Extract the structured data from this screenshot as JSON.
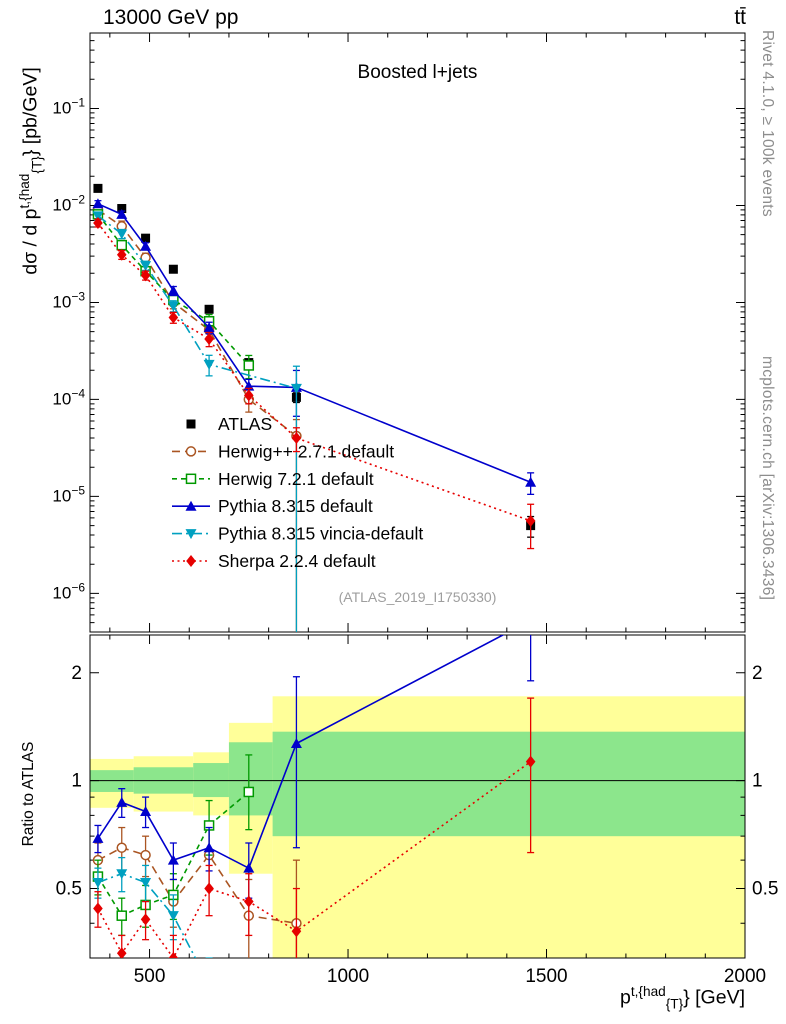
{
  "header": {
    "left": "13000 GeV pp",
    "right": "tt̄"
  },
  "side": {
    "top": "Rivet 4.1.0, ≥ 100k events",
    "bottom": "mcplots.cern.ch [arXiv:1306.3436]"
  },
  "watermark": "(ATLAS_2019_I1750330)",
  "chart_data": {
    "type": "line",
    "title": "Boosted l+jets",
    "ratio_ylabel": "Ratio to ATLAS",
    "ylabel_tokens": [
      {
        "t": "dσ / d p",
        "m": "n"
      },
      {
        "t": "t,{had",
        "m": "sup"
      },
      {
        "t": "{T}",
        "m": "sub"
      },
      {
        "t": "} [pb/GeV]",
        "m": "n"
      }
    ],
    "xlabel_tokens": [
      {
        "t": "p",
        "m": "n"
      },
      {
        "t": "t,{had",
        "m": "sup"
      },
      {
        "t": "{T}",
        "m": "sub"
      },
      {
        "t": "} [GeV]",
        "m": "n"
      }
    ],
    "x_range": [
      350,
      2000
    ],
    "top_y_range": [
      4e-07,
      0.6
    ],
    "top_y_log": true,
    "ratio_y_range": [
      0.32,
      2.55
    ],
    "ratio_y_log": true,
    "x_ticks": [
      500,
      1000,
      1500,
      2000
    ],
    "x_minor_step": 100,
    "top_y_tick_exponents": [
      -6,
      -5,
      -4,
      -3,
      -2,
      -1
    ],
    "ratio_y_ticks": [
      0.5,
      1,
      2
    ],
    "ratio_reference": 1,
    "bands": {
      "yellow": {
        "color": "#ffff99",
        "bins": [
          {
            "x1": 350,
            "x2": 460,
            "lo": 0.84,
            "hi": 1.15
          },
          {
            "x1": 460,
            "x2": 610,
            "lo": 0.82,
            "hi": 1.17
          },
          {
            "x1": 610,
            "x2": 700,
            "lo": 0.8,
            "hi": 1.2
          },
          {
            "x1": 700,
            "x2": 810,
            "lo": 0.55,
            "hi": 1.45
          },
          {
            "x1": 810,
            "x2": 2000,
            "lo": 0.3,
            "hi": 1.72
          }
        ]
      },
      "green": {
        "color": "#8ce68c",
        "bins": [
          {
            "x1": 350,
            "x2": 460,
            "lo": 0.93,
            "hi": 1.07
          },
          {
            "x1": 460,
            "x2": 610,
            "lo": 0.92,
            "hi": 1.09
          },
          {
            "x1": 610,
            "x2": 700,
            "lo": 0.9,
            "hi": 1.12
          },
          {
            "x1": 700,
            "x2": 810,
            "lo": 0.8,
            "hi": 1.28
          },
          {
            "x1": 810,
            "x2": 2000,
            "lo": 0.7,
            "hi": 1.37
          }
        ]
      }
    },
    "series": [
      {
        "name": "atlas",
        "legend": "ATLAS",
        "color": "#000000",
        "marker": "square-filled",
        "dash": "none",
        "x": [
          370,
          430,
          490,
          560,
          650,
          750,
          870,
          1460
        ],
        "y": [
          0.015,
          0.0093,
          0.0046,
          0.0022,
          0.00085,
          0.00024,
          0.000105,
          5e-06
        ],
        "yerr_lo": [
          0.0011,
          0.00065,
          0.00033,
          0.00016,
          6.5e-05,
          2e-05,
          1.2e-05,
          1.2e-06
        ],
        "yerr_hi": [
          0.0011,
          0.00065,
          0.00033,
          0.00016,
          6.5e-05,
          2e-05,
          1.2e-05,
          1.2e-06
        ],
        "ratio": null
      },
      {
        "name": "herwigpp",
        "legend": "Herwig++ 2.7.1 default",
        "color": "#aa5522",
        "marker": "circle-open",
        "dash": "8,5",
        "x": [
          370,
          430,
          490,
          560,
          650,
          750,
          870
        ],
        "y": [
          0.009,
          0.0061,
          0.0029,
          0.001,
          0.00052,
          0.0001,
          4.2e-05
        ],
        "yerr_lo": [
          0.001,
          0.0008,
          0.00032,
          0.00014,
          9e-05,
          2.6e-05,
          null
        ],
        "yerr_hi": [
          0.001,
          0.0008,
          0.00032,
          0.00014,
          9e-05,
          2.6e-05,
          2e-05
        ],
        "ratio": [
          0.6,
          0.65,
          0.62,
          0.46,
          0.62,
          0.42,
          0.4
        ],
        "ratio_err_lo": [
          0.07,
          0.09,
          0.08,
          0.07,
          0.12,
          0.11,
          null
        ],
        "ratio_err_hi": [
          0.07,
          0.09,
          0.08,
          0.07,
          0.12,
          0.11,
          0.2
        ]
      },
      {
        "name": "herwig7",
        "legend": "Herwig 7.2.1 default",
        "color": "#009900",
        "marker": "square-open",
        "dash": "5,4",
        "x": [
          370,
          430,
          490,
          560,
          650,
          750
        ],
        "y": [
          0.0081,
          0.0039,
          0.0021,
          0.00106,
          0.00064,
          0.000224
        ],
        "yerr_lo": [
          0.0008,
          0.00045,
          0.00024,
          0.00014,
          0.00011,
          6e-05
        ],
        "yerr_hi": [
          0.0008,
          0.00045,
          0.00024,
          0.00014,
          0.00011,
          6e-05
        ],
        "ratio": [
          0.54,
          0.42,
          0.45,
          0.48,
          0.75,
          0.93
        ],
        "ratio_err_lo": [
          0.06,
          0.05,
          0.06,
          0.07,
          0.13,
          0.2
        ],
        "ratio_err_hi": [
          0.06,
          0.05,
          0.06,
          0.07,
          0.13,
          0.25
        ]
      },
      {
        "name": "pythia",
        "legend": "Pythia 8.315 default",
        "color": "#0000cc",
        "marker": "triangle-up",
        "dash": "solid",
        "x": [
          370,
          430,
          490,
          560,
          650,
          750,
          870,
          1460
        ],
        "y": [
          0.0104,
          0.0081,
          0.0038,
          0.00132,
          0.00055,
          0.000137,
          0.000133,
          1.4e-05
        ],
        "yerr_lo": [
          0.0008,
          0.00065,
          0.00032,
          0.00014,
          7.5e-05,
          2.4e-05,
          6.6e-05,
          3.5e-06
        ],
        "yerr_hi": [
          0.0008,
          0.00065,
          0.00032,
          0.00014,
          7.5e-05,
          2.4e-05,
          6.6e-05,
          3.5e-06
        ],
        "ratio": [
          0.69,
          0.87,
          0.82,
          0.6,
          0.65,
          0.57,
          1.27,
          2.8
        ],
        "ratio_err_lo": [
          0.06,
          0.08,
          0.08,
          0.07,
          0.09,
          0.1,
          0.62,
          0.9
        ],
        "ratio_err_hi": [
          0.06,
          0.08,
          0.08,
          0.07,
          0.09,
          0.1,
          0.68,
          0.9
        ]
      },
      {
        "name": "vincia",
        "legend": "Pythia 8.315 vincia-default",
        "color": "#00a0c0",
        "marker": "triangle-down",
        "dash": "10,4,2,4",
        "x": [
          370,
          430,
          490,
          560,
          650,
          870
        ],
        "y": [
          0.0078,
          0.0051,
          0.0024,
          0.00092,
          0.00023,
          0.00013
        ],
        "yerr_lo": [
          0.0007,
          0.00055,
          0.00026,
          0.00012,
          5.5e-05,
          null
        ],
        "yerr_hi": [
          0.0007,
          0.00055,
          0.00026,
          0.00012,
          5.5e-05,
          9e-05
        ],
        "ratio": [
          0.52,
          0.55,
          0.52,
          0.42,
          0.27,
          null
        ],
        "ratio_err_lo": [
          0.05,
          0.06,
          0.06,
          0.06,
          0.05,
          null
        ],
        "ratio_err_hi": [
          0.05,
          0.06,
          0.06,
          0.06,
          0.05,
          null
        ]
      },
      {
        "name": "sherpa",
        "legend": "Sherpa 2.2.4 default",
        "color": "#e60000",
        "marker": "diamond",
        "dash": "2,3.5",
        "x": [
          370,
          430,
          490,
          560,
          650,
          750,
          870,
          1460
        ],
        "y": [
          0.0066,
          0.0031,
          0.0019,
          0.0007,
          0.00042,
          0.00011,
          4e-05,
          5.6e-06
        ],
        "yerr_lo": [
          0.0006,
          0.00032,
          0.0002,
          9e-05,
          7e-05,
          2e-05,
          1.1e-05,
          2.7e-06
        ],
        "yerr_hi": [
          0.0006,
          0.00032,
          0.0002,
          9e-05,
          7e-05,
          2e-05,
          1.1e-05,
          2.7e-06
        ],
        "ratio": [
          0.44,
          0.33,
          0.41,
          0.32,
          0.5,
          0.46,
          0.38,
          1.13
        ],
        "ratio_err_lo": [
          0.05,
          0.04,
          0.05,
          0.04,
          0.08,
          0.09,
          0.1,
          0.5
        ],
        "ratio_err_hi": [
          0.05,
          0.04,
          0.05,
          0.05,
          0.08,
          0.09,
          0.12,
          0.57
        ]
      }
    ]
  }
}
